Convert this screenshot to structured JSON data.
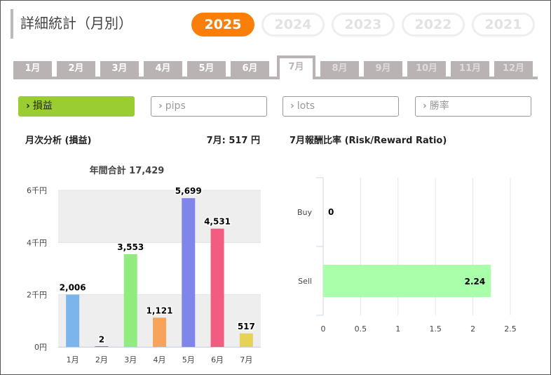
{
  "page": {
    "title": "詳細統計（月別）"
  },
  "years": [
    {
      "label": "2025",
      "active": true
    },
    {
      "label": "2024",
      "active": false
    },
    {
      "label": "2023",
      "active": false
    },
    {
      "label": "2022",
      "active": false
    },
    {
      "label": "2021",
      "active": false
    }
  ],
  "months": [
    {
      "label": "1月",
      "state": "normal"
    },
    {
      "label": "2月",
      "state": "normal"
    },
    {
      "label": "3月",
      "state": "normal"
    },
    {
      "label": "4月",
      "state": "normal"
    },
    {
      "label": "5月",
      "state": "normal"
    },
    {
      "label": "6月",
      "state": "normal"
    },
    {
      "label": "7月",
      "state": "active"
    },
    {
      "label": "8月",
      "state": "disabled"
    },
    {
      "label": "9月",
      "state": "disabled"
    },
    {
      "label": "10月",
      "state": "disabled"
    },
    {
      "label": "11月",
      "state": "disabled"
    },
    {
      "label": "12月",
      "state": "disabled"
    }
  ],
  "filters": [
    {
      "label": "損益",
      "active": true
    },
    {
      "label": "pips",
      "active": false
    },
    {
      "label": "lots",
      "active": false
    },
    {
      "label": "勝率",
      "active": false
    }
  ],
  "left_panel": {
    "heading": "月次分析 (損益)",
    "month_summary": "7月:  517 円"
  },
  "right_panel": {
    "heading": "7月報酬比率 (Risk/Reward Ratio)"
  },
  "colors": {
    "accent_year": "#fa7f0a",
    "filter_active": "#9acd32",
    "tab_bg": "#bab3b3"
  },
  "chart_data": [
    {
      "type": "bar",
      "title": "年間合計 17,429",
      "categories": [
        "1月",
        "2月",
        "3月",
        "4月",
        "5月",
        "6月",
        "7月"
      ],
      "values": [
        2006,
        2,
        3553,
        1121,
        5699,
        4531,
        517
      ],
      "value_labels": [
        "2,006",
        "2",
        "3,553",
        "1,121",
        "5,699",
        "4,531",
        "517"
      ],
      "colors": [
        "#7cb5ec",
        "#434348",
        "#90ed7d",
        "#f7a35c",
        "#8085e9",
        "#f15c80",
        "#e4d354"
      ],
      "ylim": [
        0,
        6000
      ],
      "yticks": [
        0,
        2000,
        4000,
        6000
      ],
      "ytick_labels": [
        "0円",
        "2千円",
        "4千円",
        "6千円"
      ],
      "grid": "alternating bands"
    },
    {
      "type": "bar",
      "orientation": "horizontal",
      "categories": [
        "Buy",
        "Sell"
      ],
      "values": [
        0,
        2.24
      ],
      "value_labels": [
        "0",
        "2.24"
      ],
      "color": "#aaffaa",
      "xlim": [
        0,
        2.5
      ],
      "xticks": [
        0,
        0.5,
        1,
        1.5,
        2,
        2.5
      ],
      "xtick_labels": [
        "0",
        "0.5",
        "1",
        "1.5",
        "2",
        "2.5"
      ],
      "grid": true
    }
  ]
}
